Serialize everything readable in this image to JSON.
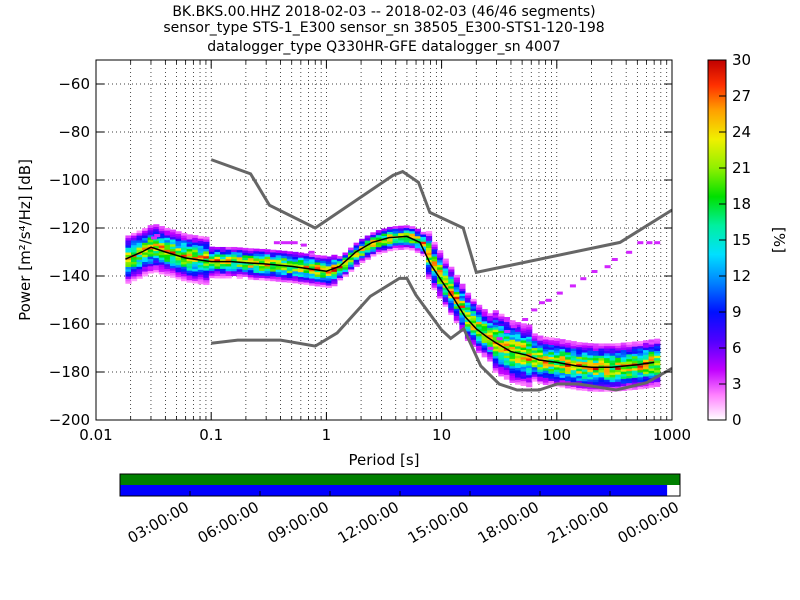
{
  "title": {
    "line1": "BK.BKS.00.HHZ   2018-02-03 -- 2018-02-03  (46/46 segments)",
    "line2": "sensor_type STS-1_E300 sensor_sn 38505_E300-STS1-120-198",
    "line3": "datalogger_type Q330HR-GFE datalogger_sn 4007"
  },
  "chart_data": [
    {
      "type": "heatmap",
      "xlabel": "Period [s]",
      "ylabel": "Power [m²/s⁴/Hz] [dB]",
      "xscale": "log",
      "xlim": [
        0.01,
        1000
      ],
      "ylim": [
        -200,
        -50
      ],
      "x_ticks": [
        0.01,
        0.1,
        1,
        10,
        100,
        1000
      ],
      "x_tick_labels": [
        "0.01",
        "0.1",
        "1",
        "10",
        "100",
        "1000"
      ],
      "y_ticks": [
        -200,
        -180,
        -160,
        -140,
        -120,
        -100,
        -80,
        -60
      ],
      "y_tick_labels": [
        "−200",
        "−180",
        "−160",
        "−140",
        "−120",
        "−100",
        "−80",
        "−60"
      ],
      "grid": "dotted",
      "colorbar": {
        "label": "[%]",
        "range": [
          0,
          30
        ],
        "ticks": [
          0,
          3,
          6,
          9,
          12,
          15,
          18,
          21,
          24,
          27,
          30
        ]
      },
      "series": [
        {
          "kind": "line",
          "x": [
            0.1,
            0.22,
            0.32,
            0.8,
            3.8,
            4.6,
            6.3,
            7.9,
            15.4,
            20,
            354,
            1000
          ],
          "y": [
            -91.5,
            -97.4,
            -110.5,
            -120,
            -98,
            -96.5,
            -101,
            -113.5,
            -120,
            -138.5,
            -126,
            -112.5
          ]
        },
        {
          "kind": "line",
          "x": [
            0.1,
            0.17,
            0.4,
            0.8,
            1.24,
            2.4,
            4.3,
            5.0,
            6.0,
            10.0,
            12.0,
            15.6,
            21.9,
            31.6,
            45.2,
            70,
            101,
            154,
            328,
            600,
            1000
          ],
          "y": [
            -168,
            -166.7,
            -166.7,
            -169.2,
            -163.7,
            -148.5,
            -141,
            -141,
            -148,
            -162.5,
            -166,
            -162,
            -177.5,
            -185,
            -187.5,
            -187.5,
            -185,
            -185,
            -187.5,
            -184.5,
            -178.5
          ]
        },
        {
          "kind": "mode",
          "x": [
            0.018,
            0.02,
            0.025,
            0.03,
            0.04,
            0.06,
            0.1,
            0.15,
            0.2,
            0.3,
            0.5,
            0.7,
            1.0,
            1.3,
            1.8,
            2.5,
            3.5,
            5,
            6.5,
            8,
            10,
            13,
            16,
            20,
            25,
            30,
            40,
            55,
            70,
            100,
            150,
            200,
            300,
            500,
            700
          ],
          "y": [
            -133,
            -132,
            -130,
            -128,
            -130,
            -132.5,
            -134,
            -134,
            -134.5,
            -135,
            -136,
            -137,
            -138,
            -136,
            -130,
            -126,
            -124,
            -123.5,
            -126,
            -135,
            -142,
            -150,
            -157,
            -162,
            -165.5,
            -168,
            -171.5,
            -173,
            -175,
            -176,
            -177.5,
            -178,
            -178,
            -177,
            -176
          ]
        }
      ]
    },
    {
      "type": "timeline",
      "x_tick_labels": [
        "03:00:00",
        "06:00:00",
        "09:00:00",
        "12:00:00",
        "15:00:00",
        "18:00:00",
        "21:00:00",
        "00:00:00"
      ],
      "rows": [
        {
          "color": "#008000",
          "coverage": [
            0,
            1
          ]
        },
        {
          "color": "#0000ff",
          "coverage": [
            0,
            0.977
          ]
        }
      ]
    }
  ]
}
